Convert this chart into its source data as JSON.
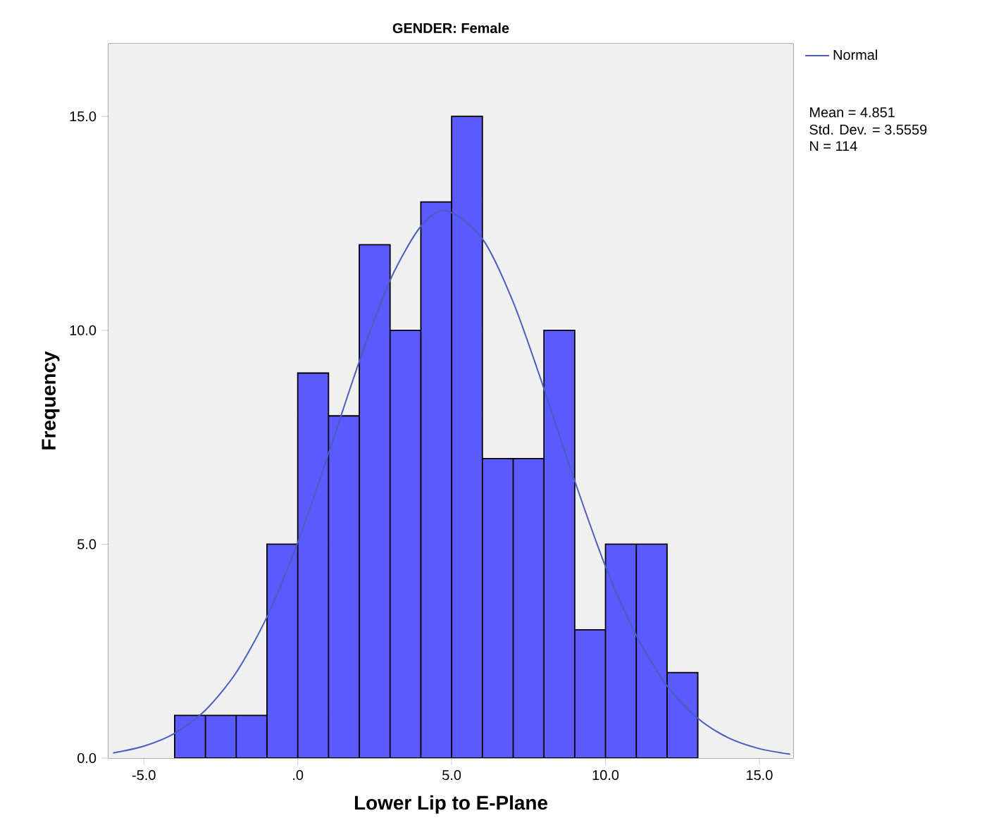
{
  "chart_data": {
    "type": "histogram",
    "title": "GENDER: Female",
    "xlabel": "Lower Lip to E-Plane",
    "ylabel": "Frequency",
    "bins": [
      -4,
      -3,
      -2,
      -1,
      0,
      1,
      2,
      3,
      4,
      5,
      6,
      7,
      8,
      9,
      10,
      11,
      12,
      13
    ],
    "values": [
      1,
      1,
      1,
      5,
      9,
      8,
      12,
      10,
      13,
      15,
      7,
      7,
      10,
      3,
      5,
      5,
      2
    ],
    "color": "#5a5aff",
    "series": [
      {
        "type": "line",
        "name": "Normal",
        "color": "#4a5ebf",
        "x": [
          -6,
          -5,
          -4,
          -3,
          -2,
          -1,
          0,
          1,
          2,
          3,
          4,
          4.85,
          6,
          7,
          8,
          9,
          10,
          11,
          12,
          13,
          14,
          15,
          16
        ],
        "values": [
          0.12,
          0.28,
          0.58,
          1.12,
          2.0,
          3.3,
          5.04,
          7.12,
          9.27,
          11.17,
          12.43,
          12.79,
          12.14,
          10.66,
          8.64,
          6.48,
          4.48,
          2.87,
          1.69,
          0.93,
          0.47,
          0.22,
          0.09
        ]
      }
    ],
    "xlim": [
      -6.15,
      16.1
    ],
    "ylim": [
      0,
      16.7
    ],
    "xticks": [
      {
        "value": -5,
        "label": "-5.0"
      },
      {
        "value": 0,
        "label": ".0"
      },
      {
        "value": 5,
        "label": "5.0"
      },
      {
        "value": 10,
        "label": "10.0"
      },
      {
        "value": 15,
        "label": "15.0"
      }
    ],
    "yticks": [
      {
        "value": 0,
        "label": "0.0"
      },
      {
        "value": 5,
        "label": "5.0"
      },
      {
        "value": 10,
        "label": "10.0"
      },
      {
        "value": 15,
        "label": "15.0"
      }
    ],
    "annotations": [
      "Mean = 4.851",
      "Std. Dev. = 3.5559",
      "N = 114"
    ],
    "legend": "top right",
    "grid": false,
    "marker": "none",
    "line_style": "solid"
  }
}
